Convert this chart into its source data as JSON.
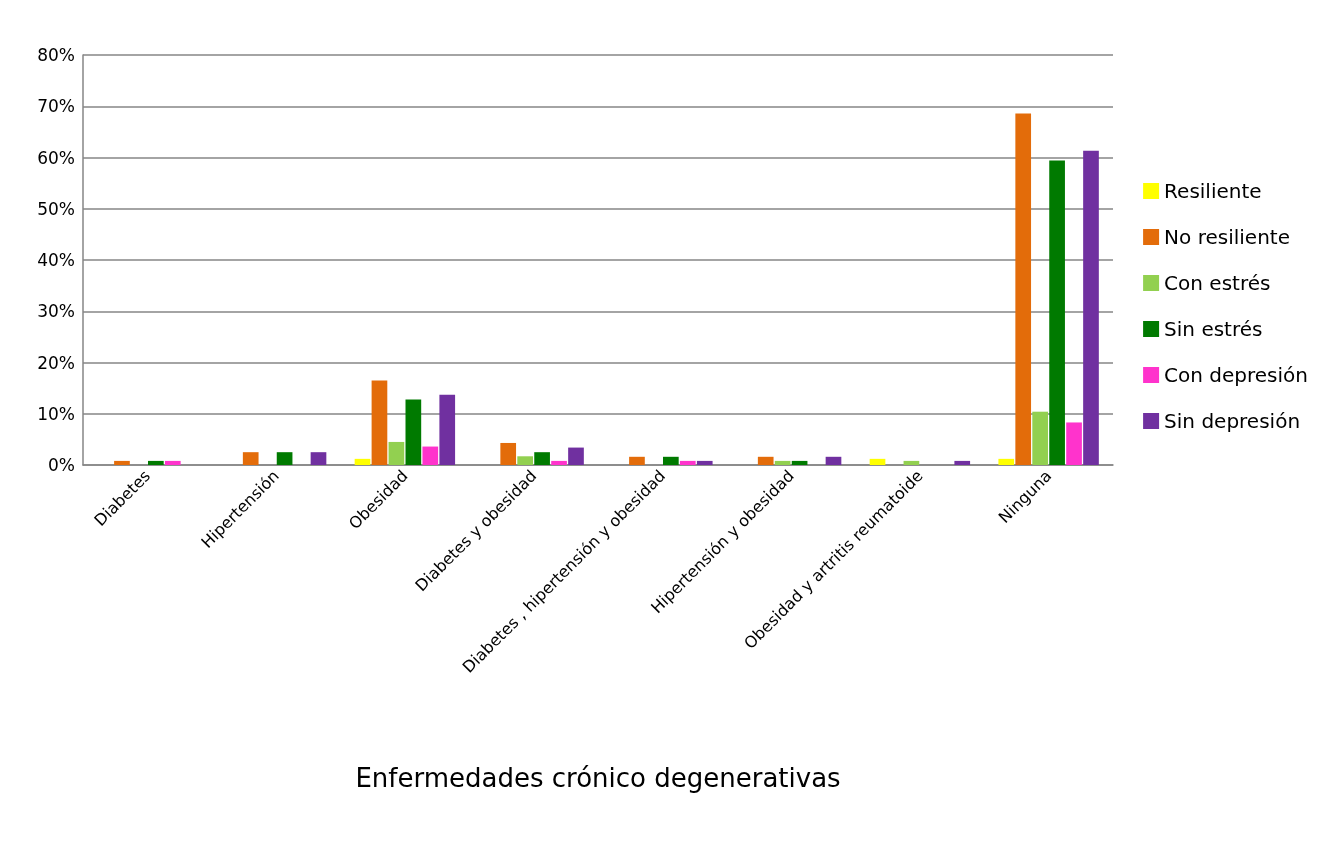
{
  "chart_data": {
    "type": "bar",
    "xlabel": "Enfermedades crónico degenerativas",
    "categories": [
      "Diabetes",
      "Hipertensión",
      "Obesidad",
      "Diabetes y obesidad",
      "Diabetes , hipertensión y obesidad",
      "Hipertensión y obesidad",
      "Obesidad y artritis reumatoide",
      "Ninguna"
    ],
    "series": [
      {
        "name": "Resiliente",
        "color": "#ffff00",
        "values": [
          0,
          0,
          1.2,
          0,
          0,
          0,
          1.2,
          1.2
        ]
      },
      {
        "name": "No resiliente",
        "color": "#e36c0a",
        "values": [
          0.8,
          2.5,
          16.5,
          4.3,
          1.6,
          1.6,
          0,
          68.6
        ]
      },
      {
        "name": "Con estrés",
        "color": "#92d050",
        "values": [
          0,
          0,
          4.5,
          1.7,
          0,
          0.8,
          0.8,
          10.4
        ]
      },
      {
        "name": "Sin estrés",
        "color": "#007a00",
        "values": [
          0.8,
          2.5,
          12.8,
          2.5,
          1.6,
          0.8,
          0,
          59.4
        ]
      },
      {
        "name": "Con depresión",
        "color": "#ff33cc",
        "values": [
          0.8,
          0,
          3.6,
          0.8,
          0.8,
          0,
          0,
          8.3
        ]
      },
      {
        "name": "Sin depresión",
        "color": "#7030a0",
        "values": [
          0,
          2.5,
          13.7,
          3.4,
          0.8,
          1.6,
          0.8,
          61.3
        ]
      }
    ],
    "ylim": [
      0,
      80
    ],
    "yticks": [
      {
        "value": 0,
        "label": "0%"
      },
      {
        "value": 10,
        "label": "10%"
      },
      {
        "value": 20,
        "label": "20%"
      },
      {
        "value": 30,
        "label": "30%"
      },
      {
        "value": 40,
        "label": "40%"
      },
      {
        "value": 50,
        "label": "50%"
      },
      {
        "value": 60,
        "label": "60%"
      },
      {
        "value": 70,
        "label": "70%"
      },
      {
        "value": 80,
        "label": "80%"
      }
    ],
    "grid": "y",
    "legend": "right"
  }
}
